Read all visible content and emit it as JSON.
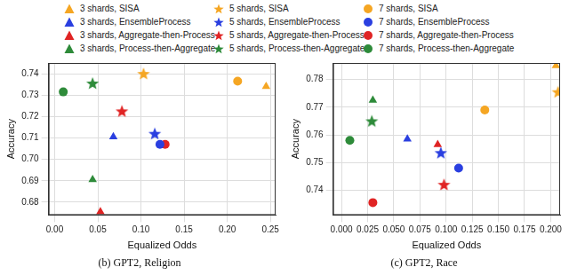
{
  "chart_data": [
    {
      "type": "scatter",
      "title": "(b) GPT2, Religion",
      "x_label": "Equalized Odds",
      "y_label": "Accuracy",
      "xlim": [
        -0.007,
        0.256
      ],
      "ylim": [
        0.674,
        0.745
      ],
      "xticks": [
        {
          "value": 0,
          "label": "0.00"
        },
        0.05,
        {
          "value": 0.1,
          "label": "0.10"
        },
        0.15,
        {
          "value": 0.2,
          "label": "0.20"
        },
        0.25
      ],
      "yticks": [
        0.68,
        0.69,
        {
          "value": 0.7,
          "label": "0.70"
        },
        0.71,
        0.72,
        0.73,
        0.74
      ],
      "grid": true,
      "legend": "top",
      "series": [
        {
          "name": "3 shards, SISA",
          "color": "#f5a623",
          "marker": "triangle",
          "x": [
            0.245
          ],
          "values": [
            0.734
          ]
        },
        {
          "name": "3 shards, EnsembleProcess",
          "color": "#2a3fe0",
          "marker": "triangle",
          "x": [
            0.068
          ],
          "values": [
            0.7105
          ]
        },
        {
          "name": "3 shards, Aggregate-then-Process",
          "color": "#e02424",
          "marker": "triangle",
          "x": [
            0.053
          ],
          "values": [
            0.6755
          ]
        },
        {
          "name": "3 shards, Process-then-Aggregate",
          "color": "#2e8b3a",
          "marker": "triangle",
          "x": [
            0.044
          ],
          "values": [
            0.6905
          ]
        },
        {
          "name": "5 shards, SISA",
          "color": "#f5a623",
          "marker": "star",
          "x": [
            0.103
          ],
          "values": [
            0.74
          ]
        },
        {
          "name": "5 shards, EnsembleProcess",
          "color": "#2a3fe0",
          "marker": "star",
          "x": [
            0.116
          ],
          "values": [
            0.712
          ]
        },
        {
          "name": "5 shards, Aggregate-then-Process",
          "color": "#e02424",
          "marker": "star",
          "x": [
            0.078
          ],
          "values": [
            0.7225
          ]
        },
        {
          "name": "5 shards, Process-then-Aggregate",
          "color": "#2e8b3a",
          "marker": "star",
          "x": [
            0.044
          ],
          "values": [
            0.7355
          ]
        },
        {
          "name": "7 shards, SISA",
          "color": "#f5a623",
          "marker": "circle",
          "x": [
            0.212
          ],
          "values": [
            0.7365
          ]
        },
        {
          "name": "7 shards, EnsembleProcess",
          "color": "#2a3fe0",
          "marker": "circle",
          "x": [
            0.122
          ],
          "values": [
            0.707
          ]
        },
        {
          "name": "7 shards, Aggregate-then-Process",
          "color": "#e02424",
          "marker": "circle",
          "x": [
            0.128
          ],
          "values": [
            0.707
          ]
        },
        {
          "name": "7 shards, Process-then-Aggregate",
          "color": "#2e8b3a",
          "marker": "circle",
          "x": [
            0.01
          ],
          "values": [
            0.7315
          ]
        }
      ]
    },
    {
      "type": "scatter",
      "title": "(c) GPT2, Race",
      "x_label": "Equalized Odds",
      "y_label": "Accuracy",
      "xlim": [
        -0.008,
        0.209
      ],
      "ylim": [
        0.731,
        0.786
      ],
      "xticks": [
        {
          "value": 0,
          "label": "0.000"
        },
        0.025,
        {
          "value": 0.05,
          "label": "0.050"
        },
        0.075,
        {
          "value": 0.1,
          "label": "0.100"
        },
        0.125,
        {
          "value": 0.15,
          "label": "0.150"
        },
        0.175,
        {
          "value": 0.2,
          "label": "0.200"
        }
      ],
      "yticks": [
        0.74,
        0.75,
        0.76,
        0.77,
        0.78
      ],
      "grid": true,
      "legend": "top",
      "series": [
        {
          "name": "3 shards, SISA",
          "color": "#f5a623",
          "marker": "triangle",
          "x": [
            0.205
          ],
          "values": [
            0.785
          ]
        },
        {
          "name": "3 shards, EnsembleProcess",
          "color": "#2a3fe0",
          "marker": "triangle",
          "x": [
            0.063
          ],
          "values": [
            0.7585
          ]
        },
        {
          "name": "3 shards, Aggregate-then-Process",
          "color": "#e02424",
          "marker": "triangle",
          "x": [
            0.092
          ],
          "values": [
            0.7565
          ]
        },
        {
          "name": "3 shards, Process-then-Aggregate",
          "color": "#2e8b3a",
          "marker": "triangle",
          "x": [
            0.03
          ],
          "values": [
            0.7725
          ]
        },
        {
          "name": "5 shards, SISA",
          "color": "#f5a623",
          "marker": "star",
          "x": [
            0.207
          ],
          "values": [
            0.7755
          ]
        },
        {
          "name": "5 shards, EnsembleProcess",
          "color": "#2a3fe0",
          "marker": "star",
          "x": [
            0.095
          ],
          "values": [
            0.7535
          ]
        },
        {
          "name": "5 shards, Aggregate-then-Process",
          "color": "#e02424",
          "marker": "star",
          "x": [
            0.098
          ],
          "values": [
            0.742
          ]
        },
        {
          "name": "5 shards, Process-then-Aggregate",
          "color": "#2e8b3a",
          "marker": "star",
          "x": [
            0.029
          ],
          "values": [
            0.765
          ]
        },
        {
          "name": "7 shards, SISA",
          "color": "#f5a623",
          "marker": "circle",
          "x": [
            0.137
          ],
          "values": [
            0.769
          ]
        },
        {
          "name": "7 shards, EnsembleProcess",
          "color": "#2a3fe0",
          "marker": "circle",
          "x": [
            0.112
          ],
          "values": [
            0.748
          ]
        },
        {
          "name": "7 shards, Aggregate-then-Process",
          "color": "#e02424",
          "marker": "circle",
          "x": [
            0.03
          ],
          "values": [
            0.7355
          ]
        },
        {
          "name": "7 shards, Process-then-Aggregate",
          "color": "#2e8b3a",
          "marker": "circle",
          "x": [
            0.008
          ],
          "values": [
            0.758
          ]
        }
      ]
    }
  ]
}
